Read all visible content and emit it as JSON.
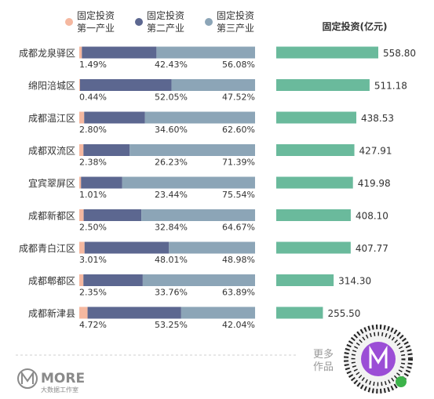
{
  "legend": [
    {
      "label1": "固定投资",
      "label2": "第一产业",
      "color": "#f5b8a0"
    },
    {
      "label1": "固定投资",
      "label2": "第二产业",
      "color": "#5c6790"
    },
    {
      "label1": "固定投资",
      "label2": "第三产业",
      "color": "#8ca5b7"
    }
  ],
  "right_title": "固定投资(亿元)",
  "colors": {
    "bar_total": "#6aba9c",
    "bg": "#ffffff",
    "text": "#333333",
    "muted": "#999999"
  },
  "chart_data": [
    {
      "type": "bar",
      "stacked": true,
      "orientation": "horizontal",
      "categories": [
        "成都龙泉驿区",
        "绵阳涪城区",
        "成都温江区",
        "成都双流区",
        "宜宾翠屏区",
        "成都新都区",
        "成都青白江区",
        "成都郫都区",
        "成都新津县"
      ],
      "series": [
        {
          "name": "固定投资第一产业",
          "values": [
            "1.49%",
            "0.44%",
            "2.80%",
            "2.38%",
            "1.01%",
            "2.50%",
            "3.01%",
            "2.35%",
            "4.72%"
          ]
        },
        {
          "name": "固定投资第二产业",
          "values": [
            "42.43%",
            "52.05%",
            "34.60%",
            "26.23%",
            "23.44%",
            "32.84%",
            "48.01%",
            "33.76%",
            "53.25%"
          ]
        },
        {
          "name": "固定投资第三产业",
          "values": [
            "56.08%",
            "47.52%",
            "62.60%",
            "71.39%",
            "75.54%",
            "64.67%",
            "48.98%",
            "63.89%",
            "42.04%"
          ]
        }
      ]
    },
    {
      "type": "bar",
      "orientation": "horizontal",
      "title": "固定投资(亿元)",
      "categories": [
        "成都龙泉驿区",
        "绵阳涪城区",
        "成都温江区",
        "成都双流区",
        "宜宾翠屏区",
        "成都新都区",
        "成都青白江区",
        "成都郫都区",
        "成都新津县"
      ],
      "values": [
        "558.80",
        "511.18",
        "438.53",
        "427.91",
        "419.98",
        "408.10",
        "407.77",
        "314.30",
        "255.50"
      ]
    }
  ],
  "footer": {
    "more_line1": "更多",
    "more_line2": "作品",
    "logo_text": "MORE",
    "logo_sub": "大数据工作室"
  }
}
